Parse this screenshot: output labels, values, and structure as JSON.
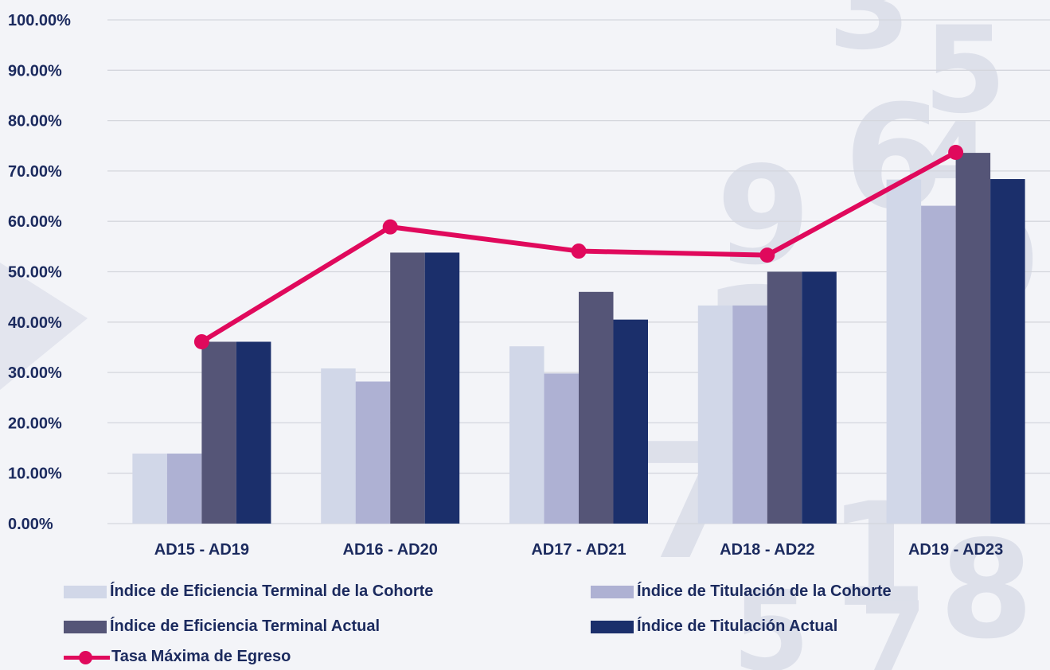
{
  "colors": {
    "series": [
      "#d1d7e8",
      "#aeb1d3",
      "#555577",
      "#1b2f6b"
    ],
    "line": "#e0095c",
    "text": "#1b2a5e",
    "grid": "#d4d6dd"
  },
  "chart_data": {
    "type": "bar",
    "categories": [
      "AD15 - AD19",
      "AD16 - AD20",
      "AD17 - AD21",
      "AD18 - AD22",
      "AD19 - AD23"
    ],
    "ylim": [
      0,
      100
    ],
    "yticks": [
      "0.00%",
      "10.00%",
      "20.00%",
      "30.00%",
      "40.00%",
      "50.00%",
      "60.00%",
      "70.00%",
      "80.00%",
      "90.00%",
      "100.00%"
    ],
    "grid": true,
    "legend_position": "bottom",
    "series": [
      {
        "name": "Índice de Eficiencia Terminal de la Cohorte",
        "type": "bar",
        "values": [
          13.9,
          30.8,
          35.2,
          43.3,
          68.3
        ]
      },
      {
        "name": "Índice de Titulación de la Cohorte",
        "type": "bar",
        "values": [
          13.9,
          28.2,
          29.8,
          43.3,
          63.1
        ]
      },
      {
        "name": "Índice de Eficiencia Terminal Actual",
        "type": "bar",
        "values": [
          36.1,
          53.8,
          46.0,
          50.0,
          73.6
        ]
      },
      {
        "name": "Índice de Titulación Actual",
        "type": "bar",
        "values": [
          36.1,
          53.8,
          40.5,
          50.0,
          68.4
        ]
      },
      {
        "name": "Tasa Máxima de Egreso",
        "type": "line",
        "values": [
          36.1,
          58.9,
          54.1,
          53.3,
          73.7
        ]
      }
    ]
  }
}
